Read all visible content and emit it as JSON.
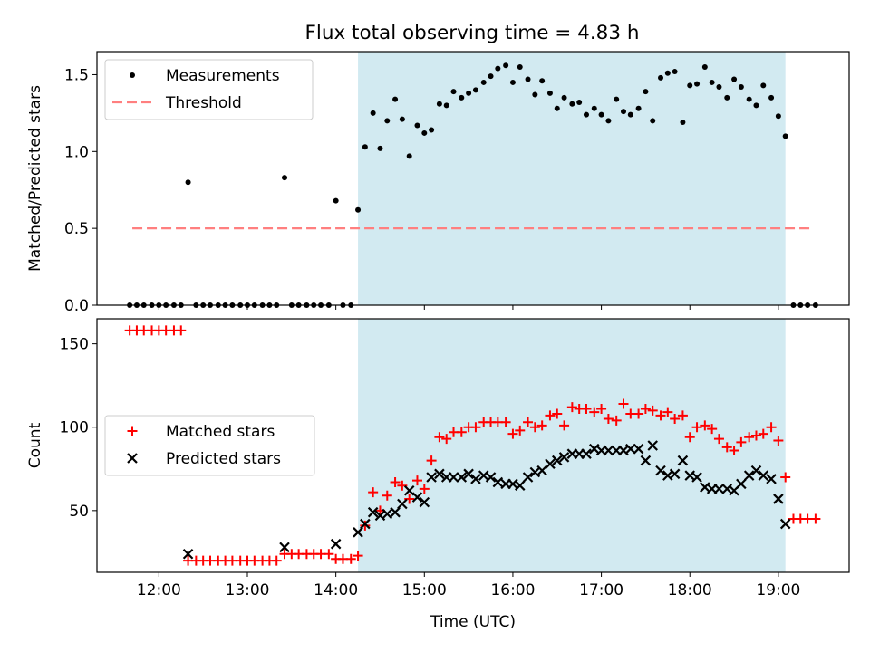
{
  "title": "Flux total observing time = 4.83 h",
  "colors": {
    "shade": "#add8e6",
    "measurement": "#000000",
    "threshold": "#ff7f7f",
    "matched": "#ff0000",
    "predicted": "#000000"
  },
  "chart_data": [
    {
      "type": "scatter",
      "ylabel": "Matched/Predicted stars",
      "xlim": [
        11.3,
        19.8
      ],
      "ylim": [
        0,
        1.65
      ],
      "yticks": [
        0.0,
        0.5,
        1.0,
        1.5
      ],
      "ytick_labels": [
        "0.0",
        "0.5",
        "1.0",
        "1.5"
      ],
      "shaded_region": [
        14.25,
        19.08
      ],
      "legend": {
        "placement": "upper-left",
        "entries": [
          {
            "label": "Measurements",
            "marker": "dot",
            "color": "#000000"
          },
          {
            "label": "Threshold",
            "marker": "dashed-line",
            "color": "#ff7f7f"
          }
        ]
      },
      "threshold": {
        "value": 0.5,
        "x_range": [
          11.7,
          19.4
        ]
      },
      "measurements": {
        "x": [
          11.67,
          11.75,
          11.83,
          11.92,
          12.0,
          12.08,
          12.17,
          12.25,
          12.33,
          12.42,
          12.5,
          12.58,
          12.67,
          12.75,
          12.83,
          12.92,
          13.0,
          13.08,
          13.17,
          13.25,
          13.33,
          13.42,
          13.5,
          13.58,
          13.67,
          13.75,
          13.83,
          13.92,
          14.0,
          14.08,
          14.17,
          14.25,
          14.33,
          14.42,
          14.5,
          14.58,
          14.67,
          14.75,
          14.83,
          14.92,
          15.0,
          15.08,
          15.17,
          15.25,
          15.33,
          15.42,
          15.5,
          15.58,
          15.67,
          15.75,
          15.83,
          15.92,
          16.0,
          16.08,
          16.17,
          16.25,
          16.33,
          16.42,
          16.5,
          16.58,
          16.67,
          16.75,
          16.83,
          16.92,
          17.0,
          17.08,
          17.17,
          17.25,
          17.33,
          17.42,
          17.5,
          17.58,
          17.67,
          17.75,
          17.83,
          17.92,
          18.0,
          18.08,
          18.17,
          18.25,
          18.33,
          18.42,
          18.5,
          18.58,
          18.67,
          18.75,
          18.83,
          18.92,
          19.0,
          19.08,
          19.17,
          19.25,
          19.33,
          19.42
        ],
        "y": [
          0,
          0,
          0,
          0,
          0,
          0,
          0,
          0,
          0.8,
          0,
          0,
          0,
          0,
          0,
          0,
          0,
          0,
          0,
          0,
          0,
          0,
          0.83,
          0,
          0,
          0,
          0,
          0,
          0,
          0.68,
          0,
          0,
          0.62,
          1.03,
          1.25,
          1.02,
          1.2,
          1.34,
          1.21,
          0.97,
          1.17,
          1.12,
          1.14,
          1.31,
          1.3,
          1.39,
          1.35,
          1.38,
          1.4,
          1.45,
          1.49,
          1.54,
          1.56,
          1.45,
          1.55,
          1.47,
          1.37,
          1.46,
          1.38,
          1.28,
          1.35,
          1.31,
          1.32,
          1.24,
          1.28,
          1.24,
          1.2,
          1.34,
          1.26,
          1.24,
          1.28,
          1.39,
          1.2,
          1.48,
          1.51,
          1.52,
          1.19,
          1.43,
          1.44,
          1.55,
          1.45,
          1.42,
          1.35,
          1.47,
          1.42,
          1.34,
          1.3,
          1.43,
          1.35,
          1.23,
          1.1,
          0,
          0,
          0,
          0
        ]
      }
    },
    {
      "type": "scatter",
      "xlabel": "Time (UTC)",
      "ylabel": "Count",
      "xlim": [
        11.3,
        19.8
      ],
      "ylim": [
        13,
        165
      ],
      "yticks": [
        50,
        100,
        150
      ],
      "ytick_labels": [
        "50",
        "100",
        "150"
      ],
      "xticks": [
        12,
        13,
        14,
        15,
        16,
        17,
        18,
        19
      ],
      "xtick_labels": [
        "12:00",
        "13:00",
        "14:00",
        "15:00",
        "16:00",
        "17:00",
        "18:00",
        "19:00"
      ],
      "shaded_region": [
        14.25,
        19.08
      ],
      "legend": {
        "placement": "center-left",
        "entries": [
          {
            "label": "Matched stars",
            "marker": "plus",
            "color": "#ff0000"
          },
          {
            "label": "Predicted stars",
            "marker": "x",
            "color": "#000000"
          }
        ]
      },
      "series": [
        {
          "name": "Matched stars",
          "marker": "plus",
          "x": [
            11.67,
            11.75,
            11.83,
            11.92,
            12.0,
            12.08,
            12.17,
            12.25,
            12.33,
            12.42,
            12.5,
            12.58,
            12.67,
            12.75,
            12.83,
            12.92,
            13.0,
            13.08,
            13.17,
            13.25,
            13.33,
            13.42,
            13.5,
            13.58,
            13.67,
            13.75,
            13.83,
            13.92,
            14.0,
            14.08,
            14.17,
            14.25,
            14.33,
            14.42,
            14.5,
            14.58,
            14.67,
            14.75,
            14.83,
            14.92,
            15.0,
            15.08,
            15.17,
            15.25,
            15.33,
            15.42,
            15.5,
            15.58,
            15.67,
            15.75,
            15.83,
            15.92,
            16.0,
            16.08,
            16.17,
            16.25,
            16.33,
            16.42,
            16.5,
            16.58,
            16.67,
            16.75,
            16.83,
            16.92,
            17.0,
            17.08,
            17.17,
            17.25,
            17.33,
            17.42,
            17.5,
            17.58,
            17.67,
            17.75,
            17.83,
            17.92,
            18.0,
            18.08,
            18.17,
            18.25,
            18.33,
            18.42,
            18.5,
            18.58,
            18.67,
            18.75,
            18.83,
            18.92,
            19.0,
            19.08,
            19.17,
            19.25,
            19.33,
            19.42
          ],
          "y": [
            158,
            158,
            158,
            158,
            158,
            158,
            158,
            158,
            20,
            20,
            20,
            20,
            20,
            20,
            20,
            20,
            20,
            20,
            20,
            20,
            20,
            24,
            24,
            24,
            24,
            24,
            24,
            24,
            21,
            21,
            21,
            23,
            41,
            61,
            50,
            59,
            67,
            65,
            57,
            68,
            63,
            80,
            94,
            93,
            97,
            97,
            100,
            100,
            103,
            103,
            103,
            103,
            96,
            98,
            103,
            100,
            101,
            107,
            108,
            101,
            112,
            111,
            111,
            109,
            111,
            105,
            104,
            114,
            108,
            108,
            111,
            110,
            107,
            109,
            105,
            107,
            94,
            100,
            101,
            99,
            93,
            88,
            86,
            91,
            94,
            95,
            96,
            100,
            92,
            70,
            45,
            45,
            45,
            45
          ]
        },
        {
          "name": "Predicted stars",
          "marker": "x",
          "x": [
            12.33,
            13.42,
            14.0,
            14.25,
            14.33,
            14.42,
            14.5,
            14.58,
            14.67,
            14.75,
            14.83,
            14.92,
            15.0,
            15.08,
            15.17,
            15.25,
            15.33,
            15.42,
            15.5,
            15.58,
            15.67,
            15.75,
            15.83,
            15.92,
            16.0,
            16.08,
            16.17,
            16.25,
            16.33,
            16.42,
            16.5,
            16.58,
            16.67,
            16.75,
            16.83,
            16.92,
            17.0,
            17.08,
            17.17,
            17.25,
            17.33,
            17.42,
            17.5,
            17.58,
            17.67,
            17.75,
            17.83,
            17.92,
            18.0,
            18.08,
            18.17,
            18.25,
            18.33,
            18.42,
            18.5,
            18.58,
            18.67,
            18.75,
            18.83,
            18.92,
            19.0,
            19.08
          ],
          "y": [
            24,
            28,
            30,
            37,
            42,
            49,
            47,
            48,
            49,
            54,
            62,
            58,
            55,
            70,
            72,
            70,
            70,
            70,
            72,
            69,
            71,
            70,
            67,
            66,
            66,
            65,
            70,
            73,
            74,
            78,
            80,
            82,
            84,
            84,
            84,
            87,
            86,
            86,
            86,
            86,
            87,
            87,
            80,
            89,
            74,
            71,
            72,
            80,
            71,
            70,
            64,
            63,
            63,
            63,
            62,
            66,
            71,
            74,
            71,
            69,
            57,
            42
          ]
        }
      ]
    }
  ]
}
